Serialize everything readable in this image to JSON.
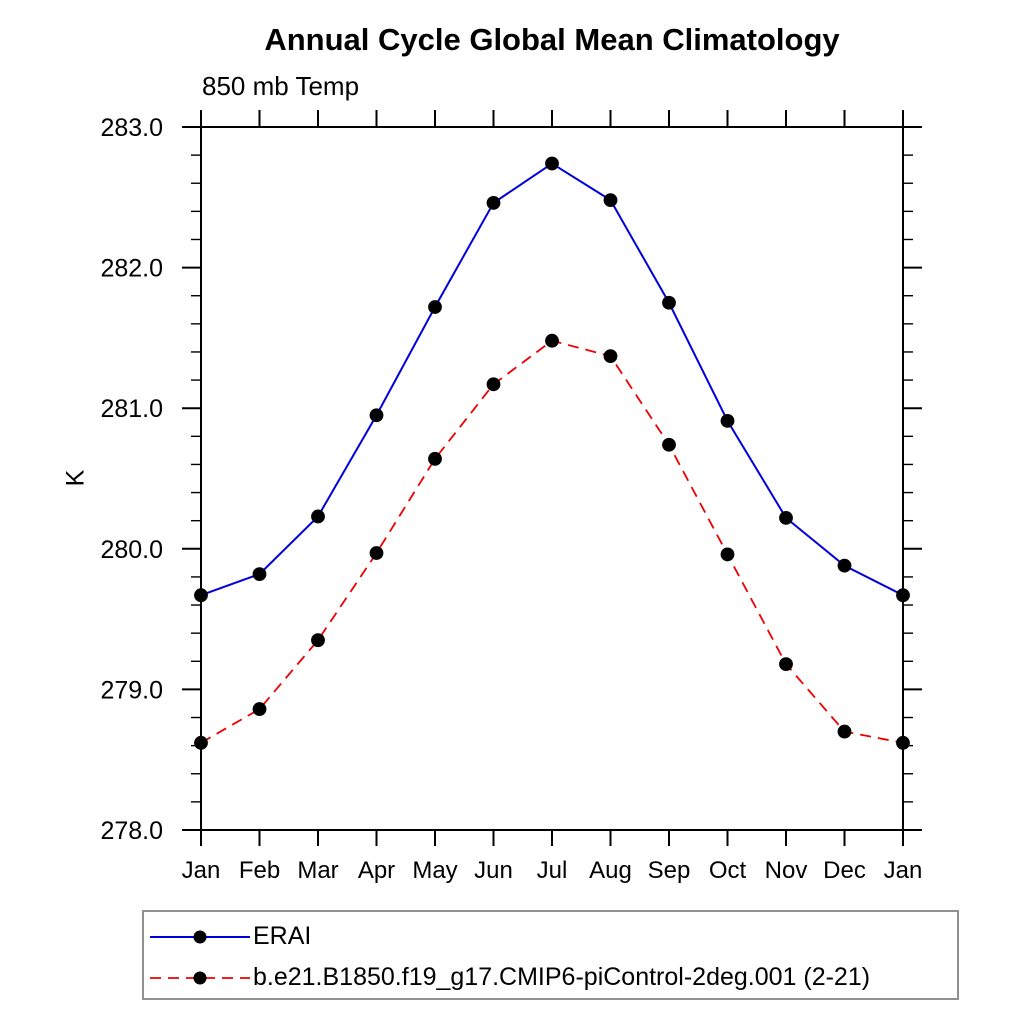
{
  "page": {
    "background": "#ffffff",
    "axis_color": "#000000",
    "legend_border_color": "#909090"
  },
  "chart_data": {
    "type": "line",
    "title": "Annual Cycle Global Mean Climatology",
    "subtitle": "850 mb Temp",
    "ylabel": "K",
    "xlabel": "",
    "x_categories": [
      "Jan",
      "Feb",
      "Mar",
      "Apr",
      "May",
      "Jun",
      "Jul",
      "Aug",
      "Sep",
      "Oct",
      "Nov",
      "Dec",
      "Jan"
    ],
    "ylim": [
      278.0,
      283.0
    ],
    "ytick_labels": [
      "283.0",
      "282.0",
      "281.0",
      "280.0",
      "279.0",
      "278.0"
    ],
    "ytick_values": [
      283.0,
      282.0,
      281.0,
      280.0,
      279.0,
      278.0
    ],
    "ytick_minor_interval": 0.2,
    "grid": false,
    "legend_position": "bottom",
    "marker": "filled-circle",
    "marker_color": "#000000",
    "series": [
      {
        "name": "ERAI",
        "color": "#0000dd",
        "line_style": "solid",
        "values": [
          279.67,
          279.82,
          280.23,
          280.95,
          281.72,
          282.46,
          282.74,
          282.48,
          281.75,
          280.91,
          280.22,
          279.88,
          279.67
        ]
      },
      {
        "name": "b.e21.B1850.f19_g17.CMIP6-piControl-2deg.001 (2-21)",
        "color": "#ee0000",
        "line_style": "dashed",
        "values": [
          278.62,
          278.86,
          279.35,
          279.97,
          280.64,
          281.17,
          281.48,
          281.37,
          280.74,
          279.96,
          279.18,
          278.7,
          278.62
        ]
      }
    ]
  }
}
